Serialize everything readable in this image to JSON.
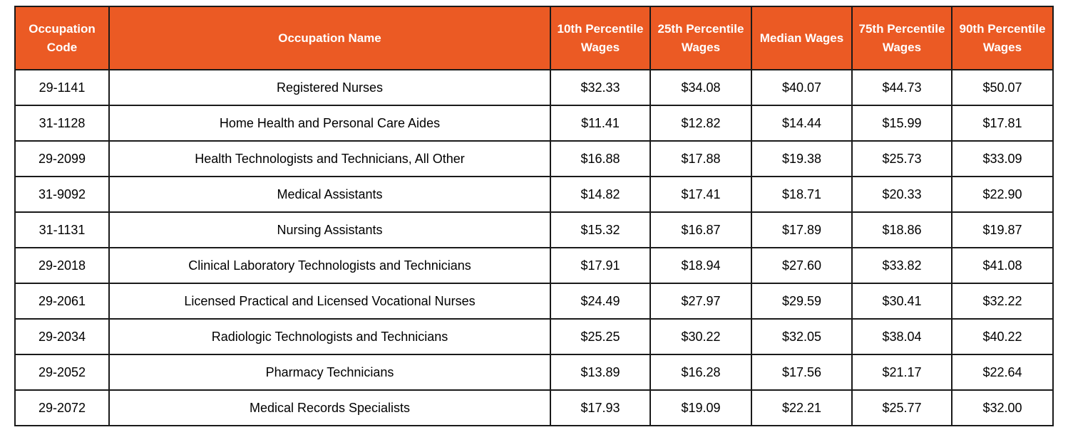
{
  "table": {
    "columns": [
      {
        "key": "code",
        "label": "Occupation Code"
      },
      {
        "key": "name",
        "label": "Occupation Name"
      },
      {
        "key": "p10",
        "label": "10th Percentile Wages"
      },
      {
        "key": "p25",
        "label": "25th Percentile Wages"
      },
      {
        "key": "median",
        "label": "Median Wages"
      },
      {
        "key": "p75",
        "label": "75th Percentile Wages"
      },
      {
        "key": "p90",
        "label": "90th Percentile Wages"
      }
    ],
    "rows": [
      {
        "code": "29-1141",
        "name": "Registered Nurses",
        "p10": "$32.33",
        "p25": "$34.08",
        "median": "$40.07",
        "p75": "$44.73",
        "p90": "$50.07"
      },
      {
        "code": "31-1128",
        "name": "Home Health and Personal Care Aides",
        "p10": "$11.41",
        "p25": "$12.82",
        "median": "$14.44",
        "p75": "$15.99",
        "p90": "$17.81"
      },
      {
        "code": "29-2099",
        "name": "Health Technologists and Technicians, All Other",
        "p10": "$16.88",
        "p25": "$17.88",
        "median": "$19.38",
        "p75": "$25.73",
        "p90": "$33.09"
      },
      {
        "code": "31-9092",
        "name": "Medical Assistants",
        "p10": "$14.82",
        "p25": "$17.41",
        "median": "$18.71",
        "p75": "$20.33",
        "p90": "$22.90"
      },
      {
        "code": "31-1131",
        "name": "Nursing Assistants",
        "p10": "$15.32",
        "p25": "$16.87",
        "median": "$17.89",
        "p75": "$18.86",
        "p90": "$19.87"
      },
      {
        "code": "29-2018",
        "name": "Clinical Laboratory Technologists and Technicians",
        "p10": "$17.91",
        "p25": "$18.94",
        "median": "$27.60",
        "p75": "$33.82",
        "p90": "$41.08"
      },
      {
        "code": "29-2061",
        "name": "Licensed Practical and Licensed Vocational Nurses",
        "p10": "$24.49",
        "p25": "$27.97",
        "median": "$29.59",
        "p75": "$30.41",
        "p90": "$32.22"
      },
      {
        "code": "29-2034",
        "name": "Radiologic Technologists and Technicians",
        "p10": "$25.25",
        "p25": "$30.22",
        "median": "$32.05",
        "p75": "$38.04",
        "p90": "$40.22"
      },
      {
        "code": "29-2052",
        "name": "Pharmacy Technicians",
        "p10": "$13.89",
        "p25": "$16.28",
        "median": "$17.56",
        "p75": "$21.17",
        "p90": "$22.64"
      },
      {
        "code": "29-2072",
        "name": "Medical Records Specialists",
        "p10": "$17.93",
        "p25": "$19.09",
        "median": "$22.21",
        "p75": "$25.77",
        "p90": "$32.00"
      }
    ]
  },
  "colors": {
    "header_background": "#eb5a24",
    "header_text": "#ffffff",
    "border": "#1a1a1a",
    "body_text": "#000000",
    "page_background": "#ffffff"
  },
  "chart_data": {
    "type": "table",
    "title": "",
    "columns": [
      "Occupation Code",
      "Occupation Name",
      "10th Percentile Wages",
      "25th Percentile Wages",
      "Median Wages",
      "75th Percentile Wages",
      "90th Percentile Wages"
    ],
    "rows": [
      [
        "29-1141",
        "Registered Nurses",
        32.33,
        34.08,
        40.07,
        44.73,
        50.07
      ],
      [
        "31-1128",
        "Home Health and Personal Care Aides",
        11.41,
        12.82,
        14.44,
        15.99,
        17.81
      ],
      [
        "29-2099",
        "Health Technologists and Technicians, All Other",
        16.88,
        17.88,
        19.38,
        25.73,
        33.09
      ],
      [
        "31-9092",
        "Medical Assistants",
        14.82,
        17.41,
        18.71,
        20.33,
        22.9
      ],
      [
        "31-1131",
        "Nursing Assistants",
        15.32,
        16.87,
        17.89,
        18.86,
        19.87
      ],
      [
        "29-2018",
        "Clinical Laboratory Technologists and Technicians",
        17.91,
        18.94,
        27.6,
        33.82,
        41.08
      ],
      [
        "29-2061",
        "Licensed Practical and Licensed Vocational Nurses",
        24.49,
        27.97,
        29.59,
        30.41,
        32.22
      ],
      [
        "29-2034",
        "Radiologic Technologists and Technicians",
        25.25,
        30.22,
        32.05,
        38.04,
        40.22
      ],
      [
        "29-2052",
        "Pharmacy Technicians",
        13.89,
        16.28,
        17.56,
        21.17,
        22.64
      ],
      [
        "29-2072",
        "Medical Records Specialists",
        17.93,
        19.09,
        22.21,
        25.77,
        32.0
      ]
    ],
    "units": "USD hourly wages",
    "layout_hints": {
      "header_fill": "#eb5a24",
      "grid": true
    }
  }
}
